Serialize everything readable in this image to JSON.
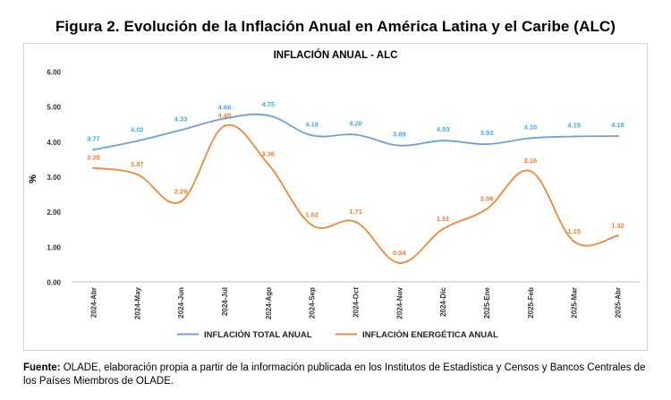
{
  "figure": {
    "title": "Figura 2. Evolución de la Inflación Anual en América Latina y el Caribe (ALC)",
    "source_label": "Fuente:",
    "source_text": "OLADE, elaboración propia a partir de la información publicada en los Institutos de Estadística y Censos y Bancos Centrales de los Países Miembros de OLADE."
  },
  "chart_data": {
    "type": "line",
    "title": "INFLACIÓN ANUAL - ALC",
    "xlabel": "",
    "ylabel": "%",
    "ylim": [
      0,
      6
    ],
    "yticks": [
      "0.00",
      "1.00",
      "2.00",
      "3.00",
      "4.00",
      "5.00",
      "6.00"
    ],
    "grid": false,
    "legend_position": "bottom",
    "categories": [
      "2024-Abr",
      "2024-May",
      "2024-Jun",
      "2024-Jul",
      "2024-Ago",
      "2024-Sep",
      "2024-Oct",
      "2024-Nov",
      "2024-Dic",
      "2025-Ene",
      "2025-Feb",
      "2025-Mar",
      "2025-Abr"
    ],
    "series": [
      {
        "name": "INFLACIÓN TOTAL ANUAL",
        "color": "#6fa0d8",
        "label_color": "#3fa9e8",
        "values": [
          3.77,
          4.02,
          4.33,
          4.66,
          4.75,
          4.18,
          4.2,
          3.89,
          4.03,
          3.93,
          4.1,
          4.15,
          4.16
        ],
        "labels": [
          "3.77",
          "4.02",
          "4.33",
          "4.66",
          "4.75",
          "4.18",
          "4.20",
          "3.89",
          "4.03",
          "3.93",
          "4.10",
          "4.15",
          "4.16"
        ]
      },
      {
        "name": "INFLACIÓN ENERGÉTICA ANUAL",
        "color": "#f0883a",
        "label_color": "#ee7d31",
        "values": [
          3.25,
          3.07,
          2.29,
          4.45,
          3.36,
          1.62,
          1.71,
          0.54,
          1.51,
          2.08,
          3.16,
          1.15,
          1.32
        ],
        "labels": [
          "3.25",
          "3.07",
          "2.29",
          "4.45",
          "3.36",
          "1.62",
          "1.71",
          "0.54",
          "1.51",
          "2.08",
          "3.16",
          "1.15",
          "1.32"
        ]
      }
    ]
  }
}
